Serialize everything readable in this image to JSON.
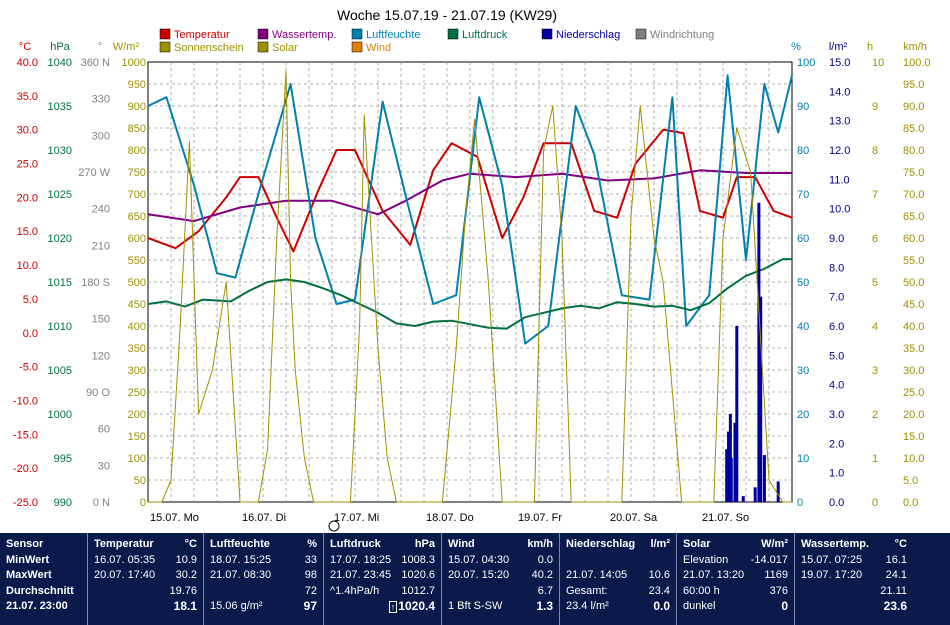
{
  "chart_data": {
    "type": "line",
    "title": "Woche 15.07.19 - 21.07.19 (KW29)",
    "days": [
      "15.07. Mo",
      "16.07. Di",
      "17.07. Mi",
      "18.07. Do",
      "19.07. Fr",
      "20.07. Sa",
      "21.07. So"
    ],
    "axes": {
      "temp": {
        "unit": "°C",
        "color": "#cc0000",
        "min": -25,
        "max": 40,
        "ticks": [
          "40.0",
          "35.0",
          "30.0",
          "25.0",
          "20.0",
          "15.0",
          "10.0",
          "5.0",
          "0.0",
          "-5.0",
          "-10.0",
          "-15.0",
          "-20.0",
          "-25.0"
        ]
      },
      "pressure": {
        "unit": "hPa",
        "color": "#007040",
        "ticks": [
          "1040",
          "1035",
          "1030",
          "1025",
          "1020",
          "1015",
          "1010",
          "1005",
          "1000",
          "995",
          "990"
        ]
      },
      "winddir": {
        "unit": "°",
        "color": "#808080",
        "labels": [
          "360 N",
          "330",
          "300",
          "270 W",
          "240",
          "210",
          "180 S",
          "150",
          "120",
          "90 O",
          "60",
          "30",
          "0 N"
        ]
      },
      "solar": {
        "unit": "W/m²",
        "color": "#a09000",
        "ticks": [
          "1000",
          "950",
          "900",
          "850",
          "800",
          "750",
          "700",
          "650",
          "600",
          "550",
          "500",
          "450",
          "400",
          "350",
          "300",
          "250",
          "200",
          "150",
          "100",
          "50",
          "0"
        ]
      },
      "humidity": {
        "unit": "%",
        "color": "#0080b0",
        "ticks": [
          "100",
          "90",
          "80",
          "70",
          "60",
          "50",
          "40",
          "30",
          "20",
          "10",
          "0"
        ]
      },
      "rain": {
        "unit": "l/m²",
        "color": "#000080",
        "ticks": [
          "15.0",
          "14.0",
          "13.0",
          "12.0",
          "11.0",
          "10.0",
          "9.0",
          "8.0",
          "7.0",
          "6.0",
          "5.0",
          "4.0",
          "3.0",
          "2.0",
          "1.0",
          "0.0"
        ]
      },
      "sunhours": {
        "unit": "h",
        "color": "#a09000",
        "ticks": [
          "10",
          "9",
          "8",
          "7",
          "6",
          "5",
          "4",
          "3",
          "2",
          "1",
          "0"
        ]
      },
      "windspeed": {
        "unit": "km/h",
        "color": "#a09000",
        "ticks": [
          "100.0",
          "95.0",
          "90.0",
          "85.0",
          "80.0",
          "75.0",
          "70.0",
          "65.0",
          "60.0",
          "55.0",
          "50.0",
          "45.0",
          "40.0",
          "35.0",
          "30.0",
          "25.0",
          "20.0",
          "15.0",
          "10.0",
          "5.0",
          "0.0"
        ]
      }
    },
    "legend": [
      {
        "name": "Temperatur",
        "color": "#cc0000"
      },
      {
        "name": "Wassertemp.",
        "color": "#800080"
      },
      {
        "name": "Luftfeuchte",
        "color": "#0080b0"
      },
      {
        "name": "Luftdruck",
        "color": "#007040"
      },
      {
        "name": "Niederschlag",
        "color": "#0000a0"
      },
      {
        "name": "Windrichtung",
        "color": "#808080"
      },
      {
        "name": "Sonnenschein",
        "color": "#a09000"
      },
      {
        "name": "Solar",
        "color": "#a09000"
      },
      {
        "name": "Wind",
        "color": "#e08000"
      }
    ],
    "series": [
      {
        "name": "Temperatur",
        "axis": "temp",
        "x": [
          0,
          0.3,
          0.55,
          0.85,
          1.0,
          1.2,
          1.4,
          1.58,
          1.85,
          2.05,
          2.25,
          2.55,
          2.85,
          3.1,
          3.3,
          3.58,
          3.85,
          4.08,
          4.3,
          4.6,
          4.85,
          5.1,
          5.3,
          5.6,
          5.82,
          6.0,
          6.25,
          6.4,
          6.6,
          6.8,
          7.0
        ],
        "y": [
          14,
          12.5,
          15,
          20,
          23,
          23,
          17,
          12,
          21,
          27,
          27,
          18,
          13,
          24,
          28,
          26,
          14,
          20,
          28,
          28,
          18,
          17,
          25,
          30,
          29.5,
          18,
          17,
          23,
          23,
          18,
          17
        ]
      },
      {
        "name": "Wassertemp.",
        "axis": "temp",
        "x": [
          0,
          0.5,
          1.0,
          1.5,
          2.0,
          2.5,
          2.8,
          3.2,
          3.5,
          4.0,
          4.5,
          5.0,
          5.5,
          6.0,
          6.5,
          7.0
        ],
        "y": [
          17.5,
          16.5,
          18.5,
          19.5,
          19.5,
          17.5,
          19.5,
          22.5,
          23.5,
          23,
          23.5,
          22.5,
          22.8,
          24,
          23.6,
          23.6
        ]
      },
      {
        "name": "Luftfeuchte",
        "axis": "humidity",
        "x": [
          0,
          0.2,
          0.5,
          0.75,
          0.95,
          1.2,
          1.55,
          1.82,
          2.05,
          2.25,
          2.55,
          2.82,
          3.1,
          3.35,
          3.6,
          3.85,
          4.1,
          4.35,
          4.65,
          4.85,
          5.15,
          5.45,
          5.7,
          5.85,
          6.1,
          6.3,
          6.5,
          6.7,
          6.85,
          7.0
        ],
        "y": [
          90,
          92,
          72,
          52,
          51,
          70,
          95,
          60,
          45,
          46,
          91,
          68,
          45,
          47,
          92,
          72,
          36,
          40,
          90,
          79,
          47,
          46,
          92,
          40,
          47,
          97,
          55,
          95,
          84,
          97
        ]
      },
      {
        "name": "Luftdruck",
        "axis": "pressure",
        "x": [
          0,
          0.2,
          0.4,
          0.6,
          0.9,
          1.1,
          1.3,
          1.5,
          1.7,
          1.9,
          2.1,
          2.3,
          2.5,
          2.7,
          2.9,
          3.1,
          3.3,
          3.5,
          3.7,
          3.9,
          4.1,
          4.3,
          4.5,
          4.7,
          4.9,
          5.1,
          5.3,
          5.5,
          5.7,
          5.9,
          6.1,
          6.3,
          6.5,
          6.7,
          6.9,
          7.0
        ],
        "y": [
          1012.5,
          1012.8,
          1012.2,
          1013,
          1012.8,
          1014,
          1015,
          1015.3,
          1015,
          1014.3,
          1013.5,
          1012.5,
          1011.5,
          1010.3,
          1010,
          1010.5,
          1010.6,
          1010.2,
          1009.8,
          1009.7,
          1011,
          1011.5,
          1012,
          1012.3,
          1012,
          1012.7,
          1012.5,
          1012.2,
          1012.3,
          1011.8,
          1012.6,
          1014.3,
          1015.7,
          1016.5,
          1017.6,
          1017.6
        ]
      },
      {
        "name": "Niederschlag",
        "axis": "rain",
        "x": [
          6.29,
          6.31,
          6.33,
          6.34,
          6.38,
          6.4,
          6.47,
          6.6,
          6.64,
          6.66,
          6.7,
          6.85
        ],
        "y": [
          1.8,
          2.4,
          3.0,
          1.5,
          2.7,
          6.0,
          0.2,
          0.5,
          10.2,
          7.0,
          1.6,
          0.7
        ]
      },
      {
        "name": "Solar",
        "axis": "solar",
        "x": [
          0,
          0.15,
          0.25,
          0.35,
          0.45,
          0.55,
          0.7,
          0.85,
          1.0,
          1.2,
          1.3,
          1.4,
          1.5,
          1.55,
          1.6,
          1.7,
          1.8,
          1.95,
          2.2,
          2.3,
          2.35,
          2.4,
          2.5,
          2.6,
          2.7,
          2.85,
          3.2,
          3.35,
          3.45,
          3.55,
          3.7,
          3.85,
          4.2,
          4.3,
          4.4,
          4.5,
          4.6,
          4.8,
          5.15,
          5.25,
          5.35,
          5.5,
          5.6,
          5.8,
          6.15,
          6.25,
          6.4,
          6.55,
          6.65,
          6.75,
          6.9,
          7.0
        ],
        "y": [
          0,
          0,
          50,
          400,
          820,
          200,
          300,
          500,
          0,
          0,
          120,
          600,
          980,
          500,
          300,
          100,
          0,
          0,
          0,
          400,
          880,
          700,
          350,
          100,
          0,
          0,
          0,
          350,
          650,
          870,
          500,
          0,
          0,
          800,
          900,
          600,
          0,
          0,
          0,
          650,
          900,
          600,
          500,
          0,
          0,
          600,
          850,
          750,
          400,
          50,
          0,
          0
        ]
      }
    ]
  },
  "stats": {
    "sensor": {
      "h": "Sensor",
      "min": "MinWert",
      "max": "MaxWert",
      "avg": "Durchschnitt",
      "now": "21.07. 23:00"
    },
    "temp": {
      "h": "Temperatur",
      "u": "°C",
      "min_t": "16.07. 05:35",
      "min_v": "10.9",
      "max_t": "20.07. 17:40",
      "max_v": "30.2",
      "avg": "19.76",
      "now": "18.1"
    },
    "hum": {
      "h": "Luftfeuchte",
      "u": "%",
      "min_t": "18.07. 15:25",
      "min_v": "33",
      "max_t": "21.07. 08:30",
      "max_v": "98",
      "avg": "72",
      "now_t": "15.06 g/m²",
      "now": "97"
    },
    "press": {
      "h": "Luftdruck",
      "u": "hPa",
      "min_t": "17.07. 18:25",
      "min_v": "1008.3",
      "max_t": "21.07. 23:45",
      "max_v": "1020.6",
      "avg_t": "^1.4hPa/h",
      "avg": "1012.7",
      "now": "1020.4"
    },
    "wind": {
      "h": "Wind",
      "u": "km/h",
      "min_t": "15.07. 04:30",
      "min_v": "0.0",
      "max_t": "20.07. 15:20",
      "max_v": "40.2",
      "avg": "6.7",
      "now_t": "1 Bft S-SW",
      "now": "1.3"
    },
    "rain": {
      "h": "Niederschlag",
      "u": "l/m²",
      "max_t": "21.07. 14:05",
      "max_v": "10.6",
      "avg_t": "Gesamt:",
      "avg": "23.4",
      "now_t": "23.4 l/m²",
      "now": "0.0"
    },
    "solar": {
      "h": "Solar",
      "u": "W/m²",
      "min_t": "Elevation",
      "min_v": "-14.017",
      "max_t": "21.07. 13:20",
      "max_v": "1169",
      "avg_t": "60:00 h",
      "avg": "376",
      "now_t": "dunkel",
      "now": "0"
    },
    "water": {
      "h": "Wassertemp.",
      "u": "°C",
      "min_t": "15.07. 07:25",
      "min_v": "16.1",
      "max_t": "19.07. 17:20",
      "max_v": "24.1",
      "avg": "21.11",
      "now": "23.6"
    }
  }
}
